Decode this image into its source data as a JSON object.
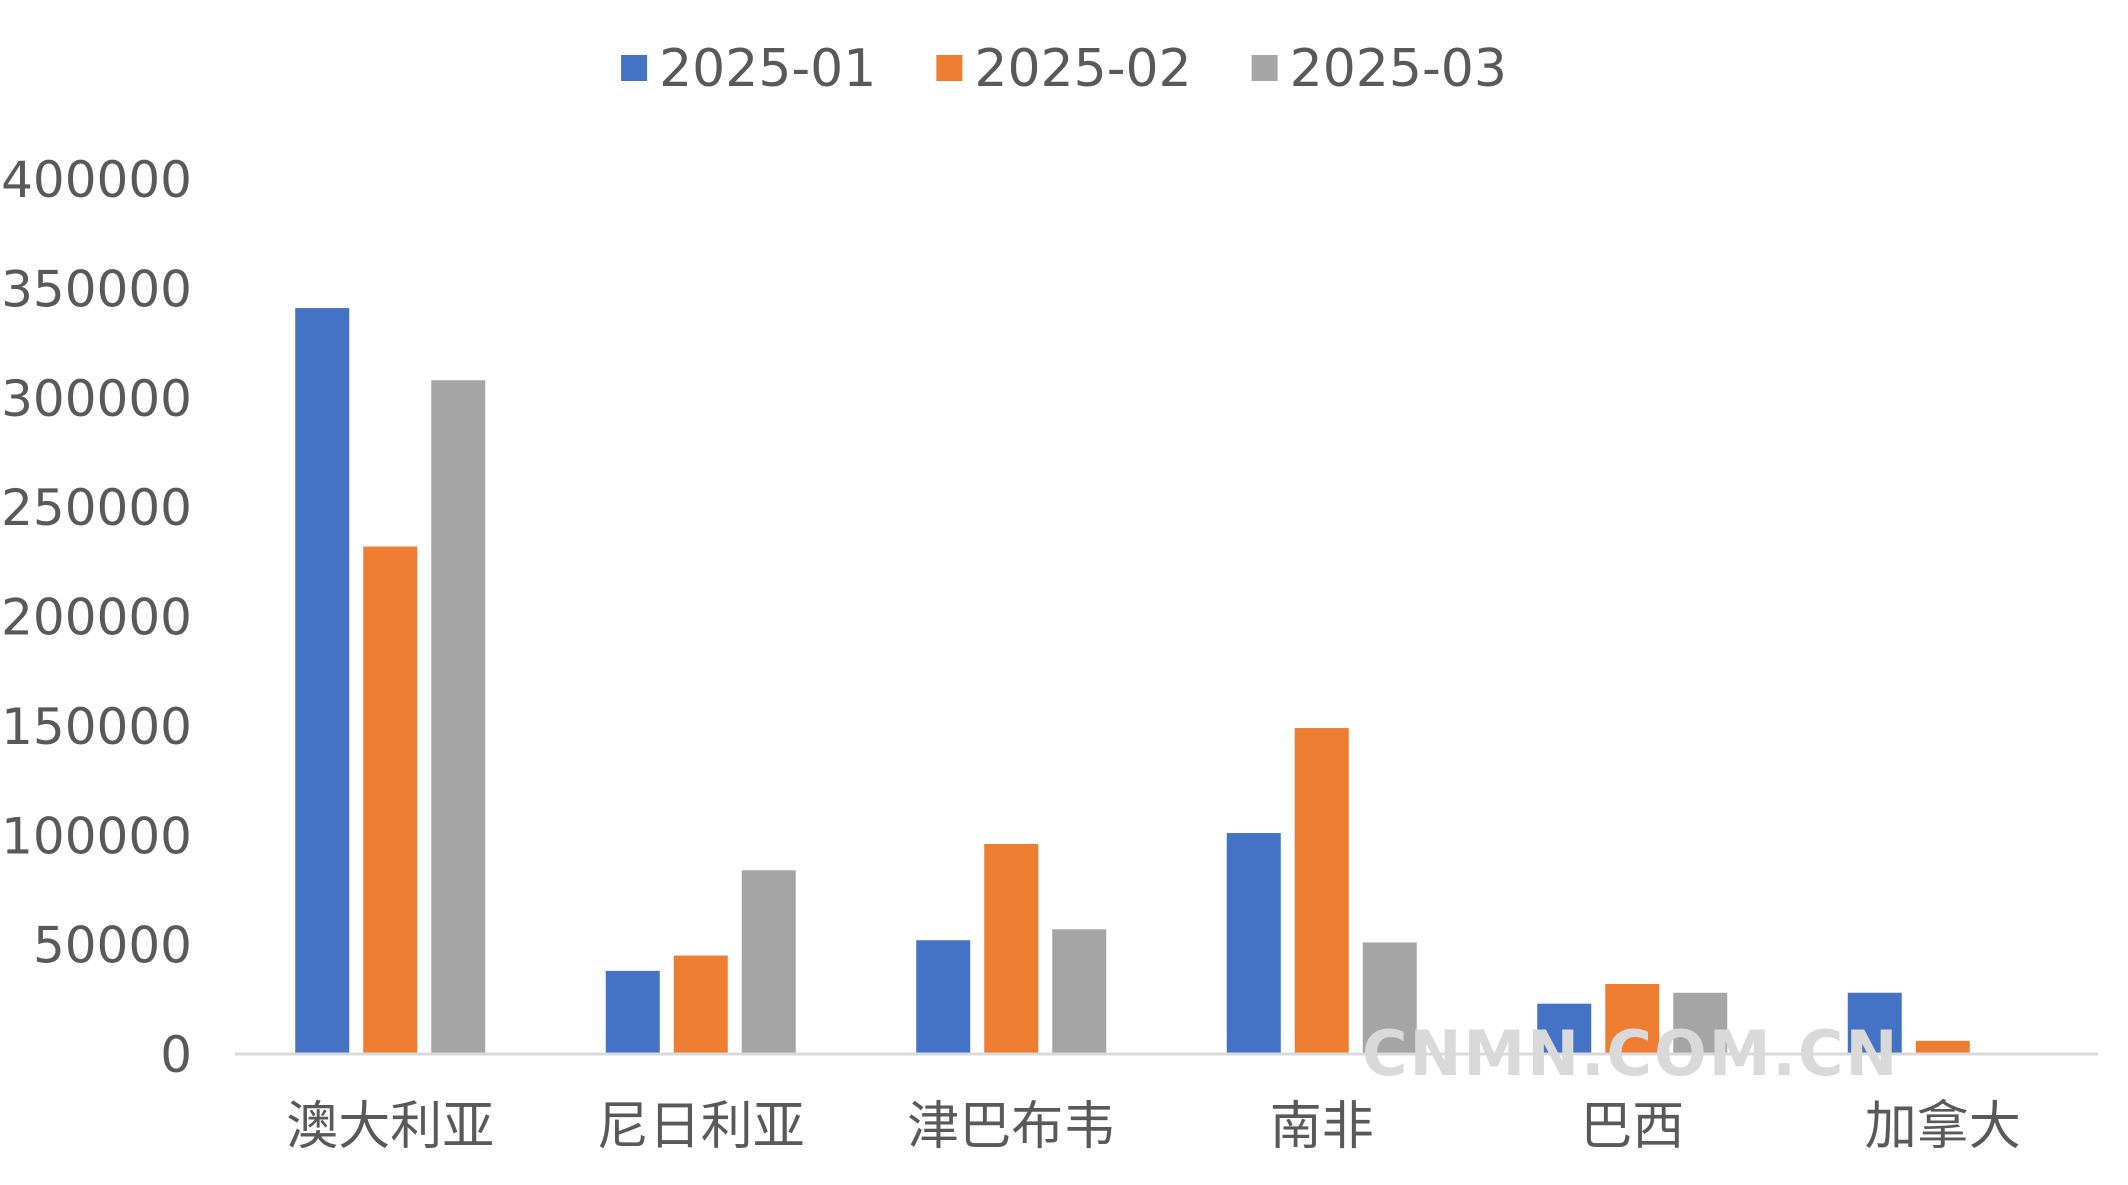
{
  "chart_data": {
    "type": "bar",
    "categories": [
      "澳大利亚",
      "尼日利亚",
      "津巴布韦",
      "南非",
      "巴西",
      "加拿大"
    ],
    "series": [
      {
        "name": "2025-01",
        "color": "#4472C4",
        "values": [
          341000,
          38000,
          52000,
          101000,
          23000,
          28000
        ]
      },
      {
        "name": "2025-02",
        "color": "#ED7D31",
        "values": [
          232000,
          45000,
          96000,
          149000,
          32000,
          6000
        ]
      },
      {
        "name": "2025-03",
        "color": "#A5A5A5",
        "values": [
          308000,
          84000,
          57000,
          51000,
          28000,
          0
        ]
      }
    ],
    "yticks": [
      "0",
      "50000",
      "100000",
      "150000",
      "200000",
      "250000",
      "300000",
      "350000",
      "400000"
    ],
    "ylim": [
      0,
      400000
    ],
    "grid": false,
    "legend": "top-center"
  },
  "watermark": "CNMN.COM.CN"
}
